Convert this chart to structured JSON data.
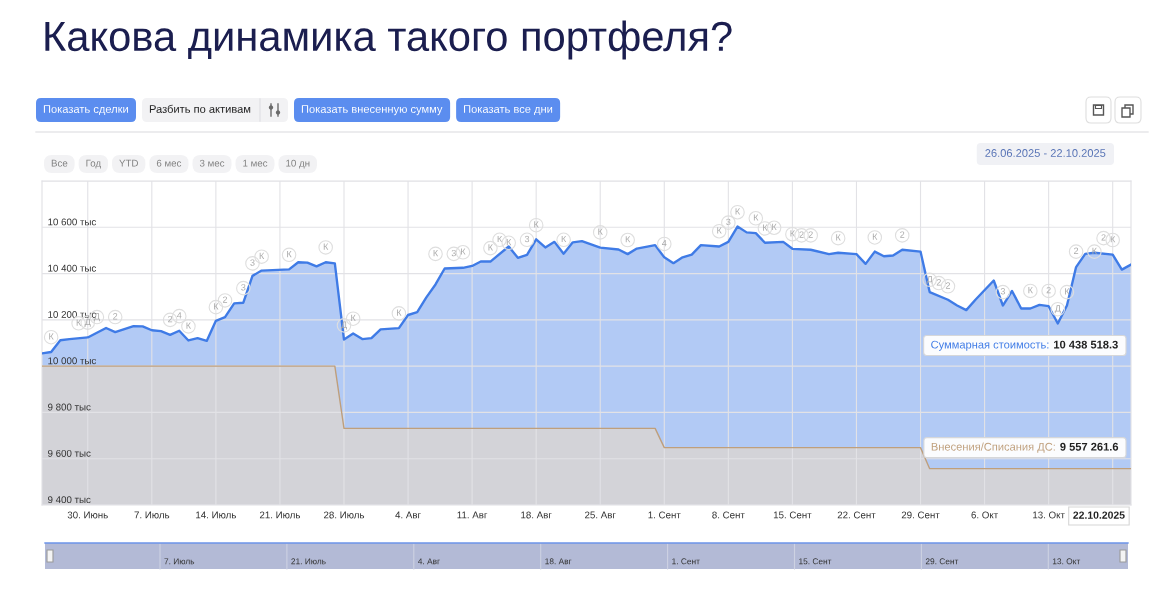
{
  "chart_data": {
    "type": "area",
    "title": "Какова динамика такого портфеля?",
    "series": [
      {
        "color": "#3f7be6",
        "x": [
          "2025-06-25",
          "2025-06-26",
          "2025-06-27",
          "2025-06-28",
          "2025-06-30",
          "2025-07-02",
          "2025-07-03",
          "2025-07-05",
          "2025-07-06",
          "2025-07-07",
          "2025-07-08",
          "2025-07-09",
          "2025-07-10",
          "2025-07-11",
          "2025-07-12",
          "2025-07-13",
          "2025-07-14",
          "2025-07-15",
          "2025-07-16",
          "2025-07-17",
          "2025-07-18",
          "2025-07-19",
          "2025-07-22",
          "2025-07-23",
          "2025-07-24",
          "2025-07-25",
          "2025-07-26",
          "2025-07-27",
          "2025-07-28",
          "2025-07-29",
          "2025-07-30",
          "2025-07-31",
          "2025-08-01",
          "2025-08-03",
          "2025-08-04",
          "2025-08-05",
          "2025-08-06",
          "2025-08-07",
          "2025-08-08",
          "2025-08-10",
          "2025-08-11",
          "2025-08-12",
          "2025-08-13",
          "2025-08-15",
          "2025-08-16",
          "2025-08-17",
          "2025-08-18",
          "2025-08-19",
          "2025-08-20",
          "2025-08-21",
          "2025-08-22",
          "2025-08-23",
          "2025-08-25",
          "2025-08-27",
          "2025-08-28",
          "2025-08-29",
          "2025-08-31",
          "2025-09-01",
          "2025-09-02",
          "2025-09-03",
          "2025-09-04",
          "2025-09-05",
          "2025-09-07",
          "2025-09-08",
          "2025-09-09",
          "2025-09-10",
          "2025-09-11",
          "2025-09-12",
          "2025-09-14",
          "2025-09-15",
          "2025-09-17",
          "2025-09-19",
          "2025-09-20",
          "2025-09-22",
          "2025-09-23",
          "2025-09-24",
          "2025-09-25",
          "2025-09-26",
          "2025-09-27",
          "2025-09-29",
          "2025-09-30",
          "2025-10-02",
          "2025-10-03",
          "2025-10-04",
          "2025-10-05",
          "2025-10-07",
          "2025-10-08",
          "2025-10-09",
          "2025-10-10",
          "2025-10-11",
          "2025-10-12",
          "2025-10-13",
          "2025-10-14",
          "2025-10-15",
          "2025-10-16",
          "2025-10-17",
          "2025-10-18",
          "2025-10-20",
          "2025-10-21",
          "2025-10-22"
        ],
        "values": [
          10055,
          10061,
          10112,
          10117,
          10124,
          10165,
          10147,
          10173,
          10172,
          10155,
          10151,
          10135,
          10153,
          10111,
          10121,
          10109,
          10196,
          10212,
          10271,
          10274,
          10390,
          10413,
          10418,
          10449,
          10447,
          10431,
          10449,
          10444,
          10115,
          10141,
          10117,
          10121,
          10159,
          10164,
          10221,
          10233,
          10297,
          10353,
          10422,
          10425,
          10433,
          10453,
          10452,
          10517,
          10468,
          10481,
          10548,
          10513,
          10537,
          10486,
          10535,
          10540,
          10512,
          10504,
          10484,
          10508,
          10523,
          10470,
          10445,
          10470,
          10482,
          10523,
          10517,
          10537,
          10603,
          10578,
          10575,
          10533,
          10537,
          10507,
          10503,
          10484,
          10490,
          10484,
          10442,
          10495,
          10475,
          10478,
          10503,
          10495,
          10320,
          10287,
          10262,
          10242,
          10287,
          10370,
          10262,
          10325,
          10249,
          10249,
          10265,
          10259,
          10184,
          10262,
          10428,
          10485,
          10490,
          10482,
          10417,
          10439
        ]
      },
      {
        "color": "#bf9f7c",
        "x": [
          "2025-06-25",
          "2025-07-27",
          "2025-07-28",
          "2025-08-31",
          "2025-09-01",
          "2025-09-29",
          "2025-09-30",
          "2025-10-22"
        ],
        "values": [
          10000,
          10000,
          9731,
          9731,
          9648,
          9648,
          9557,
          9557
        ]
      }
    ],
    "xlim": [
      "2025-06-25",
      "2025-10-22"
    ],
    "xticks": [
      {
        "value": "2025-06-30",
        "label": "30. Июнь"
      },
      {
        "value": "2025-07-07",
        "label": "7. Июль"
      },
      {
        "value": "2025-07-14",
        "label": "14. Июль"
      },
      {
        "value": "2025-07-21",
        "label": "21. Июль"
      },
      {
        "value": "2025-07-28",
        "label": "28. Июль"
      },
      {
        "value": "2025-08-04",
        "label": "4. Авг"
      },
      {
        "value": "2025-08-11",
        "label": "11. Авг"
      },
      {
        "value": "2025-08-18",
        "label": "18. Авг"
      },
      {
        "value": "2025-08-25",
        "label": "25. Авг"
      },
      {
        "value": "2025-09-01",
        "label": "1. Сент"
      },
      {
        "value": "2025-09-08",
        "label": "8. Сент"
      },
      {
        "value": "2025-09-15",
        "label": "15. Сент"
      },
      {
        "value": "2025-09-22",
        "label": "22. Сент"
      },
      {
        "value": "2025-09-29",
        "label": "29. Сент"
      },
      {
        "value": "2025-10-06",
        "label": "6. Окт"
      },
      {
        "value": "2025-10-13",
        "label": "13. Окт"
      },
      {
        "value": "2025-10-20",
        "label": null
      }
    ],
    "ylim": [
      9400,
      10800
    ],
    "yticks": [
      {
        "value": 9400,
        "label": "9 400 тыс"
      },
      {
        "value": 9600,
        "label": "9 600 тыс"
      },
      {
        "value": 9800,
        "label": "9 800 тыс"
      },
      {
        "value": 10000,
        "label": "10 000 тыс"
      },
      {
        "value": 10200,
        "label": "10 200 тыс"
      },
      {
        "value": 10400,
        "label": "10 400 тыс"
      },
      {
        "value": 10600,
        "label": "10 600 тыс"
      },
      {
        "value": 10800,
        "label": null
      }
    ],
    "grid": true,
    "annotations": [
      "Показать сделки",
      "Разбить по активам",
      "Показать внесенную сумму",
      "Показать все дни",
      "Все",
      "Год",
      "YTD",
      "6 мес",
      "3 мес",
      "1 мес",
      "10 дн",
      "26.06.2025 - 22.10.2025",
      "Суммарная стоимость: 10 438 518.3",
      "Внесения/Списания ДС: 9 557 261.6",
      "22.10.2025",
      "7. Июль",
      "21. Июль",
      "4. Авг",
      "18. Авг",
      "1. Сент",
      "15. Сент",
      "29. Сент",
      "13. Окт",
      {
        "text": "К",
        "x": "2025-06-26",
        "y": 10125
      },
      {
        "text": "К",
        "x": "2025-06-29",
        "y": 10185
      },
      {
        "text": "Д",
        "x": "2025-06-30",
        "y": 10188
      },
      {
        "text": "Д",
        "x": "2025-07-01",
        "y": 10212
      },
      {
        "text": "2",
        "x": "2025-07-03",
        "y": 10212
      },
      {
        "text": "2",
        "x": "2025-07-09",
        "y": 10200
      },
      {
        "text": "4",
        "x": "2025-07-10",
        "y": 10216
      },
      {
        "text": "К",
        "x": "2025-07-11",
        "y": 10172
      },
      {
        "text": "К",
        "x": "2025-07-14",
        "y": 10255
      },
      {
        "text": "2",
        "x": "2025-07-15",
        "y": 10284
      },
      {
        "text": "3",
        "x": "2025-07-17",
        "y": 10337
      },
      {
        "text": "3",
        "x": "2025-07-18",
        "y": 10444
      },
      {
        "text": "К",
        "x": "2025-07-19",
        "y": 10473
      },
      {
        "text": "К",
        "x": "2025-07-22",
        "y": 10481
      },
      {
        "text": "К",
        "x": "2025-07-26",
        "y": 10513
      },
      {
        "text": "Д",
        "x": "2025-07-28",
        "y": 10176
      },
      {
        "text": "К",
        "x": "2025-07-29",
        "y": 10205
      },
      {
        "text": "К",
        "x": "2025-08-03",
        "y": 10228
      },
      {
        "text": "К",
        "x": "2025-08-07",
        "y": 10485
      },
      {
        "text": "3",
        "x": "2025-08-09",
        "y": 10485
      },
      {
        "text": "К",
        "x": "2025-08-10",
        "y": 10492
      },
      {
        "text": "К",
        "x": "2025-08-13",
        "y": 10510
      },
      {
        "text": "К",
        "x": "2025-08-14",
        "y": 10546
      },
      {
        "text": "К",
        "x": "2025-08-15",
        "y": 10533
      },
      {
        "text": "3",
        "x": "2025-08-17",
        "y": 10546
      },
      {
        "text": "К",
        "x": "2025-08-18",
        "y": 10609
      },
      {
        "text": "К",
        "x": "2025-08-21",
        "y": 10546
      },
      {
        "text": "К",
        "x": "2025-08-25",
        "y": 10578
      },
      {
        "text": "К",
        "x": "2025-08-28",
        "y": 10545
      },
      {
        "text": "4",
        "x": "2025-09-01",
        "y": 10528
      },
      {
        "text": "К",
        "x": "2025-09-07",
        "y": 10583
      },
      {
        "text": "3",
        "x": "2025-09-08",
        "y": 10620
      },
      {
        "text": "К",
        "x": "2025-09-09",
        "y": 10665
      },
      {
        "text": "К",
        "x": "2025-09-11",
        "y": 10639
      },
      {
        "text": "К",
        "x": "2025-09-12",
        "y": 10595
      },
      {
        "text": "К",
        "x": "2025-09-13",
        "y": 10598
      },
      {
        "text": "К",
        "x": "2025-09-15",
        "y": 10570
      },
      {
        "text": "2",
        "x": "2025-09-16",
        "y": 10565
      },
      {
        "text": "2",
        "x": "2025-09-17",
        "y": 10565
      },
      {
        "text": "К",
        "x": "2025-09-20",
        "y": 10553
      },
      {
        "text": "К",
        "x": "2025-09-24",
        "y": 10556
      },
      {
        "text": "2",
        "x": "2025-09-27",
        "y": 10565
      },
      {
        "text": "Д",
        "x": "2025-09-30",
        "y": 10373
      },
      {
        "text": "2",
        "x": "2025-10-01",
        "y": 10359
      },
      {
        "text": "2",
        "x": "2025-10-02",
        "y": 10345
      },
      {
        "text": "3",
        "x": "2025-10-08",
        "y": 10320
      },
      {
        "text": "К",
        "x": "2025-10-11",
        "y": 10325
      },
      {
        "text": "2",
        "x": "2025-10-13",
        "y": 10325
      },
      {
        "text": "Д",
        "x": "2025-10-14",
        "y": 10246
      },
      {
        "text": "К",
        "x": "2025-10-15",
        "y": 10320
      },
      {
        "text": "2",
        "x": "2025-10-16",
        "y": 10495
      },
      {
        "text": "К",
        "x": "2025-10-18",
        "y": 10495
      },
      {
        "text": "2",
        "x": "2025-10-19",
        "y": 10553
      },
      {
        "text": "К",
        "x": "2025-10-20",
        "y": 10545
      }
    ]
  }
}
